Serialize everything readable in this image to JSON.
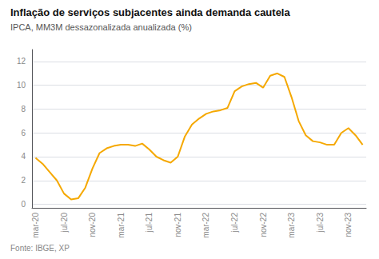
{
  "chart_data": {
    "type": "line",
    "title": "Inflação de serviços subjacentes ainda demanda cautela",
    "subtitle": "IPCA, MM3M dessazonalizada anualizada (%)",
    "footnote": "Fonte: IBGE, XP",
    "categories": [
      "mar-20",
      null,
      null,
      null,
      "jul-20",
      null,
      null,
      null,
      "nov-20",
      null,
      null,
      null,
      "mar-21",
      null,
      null,
      null,
      "jul-21",
      null,
      null,
      null,
      "nov-21",
      null,
      null,
      null,
      "mar-22",
      null,
      null,
      null,
      "jul-22",
      null,
      null,
      null,
      "nov-22",
      null,
      null,
      null,
      "mar-23",
      null,
      null,
      null,
      "jul-23",
      null,
      null,
      null,
      "nov-23",
      null,
      null
    ],
    "values": [
      3.9,
      3.4,
      2.7,
      2.0,
      0.9,
      0.4,
      0.5,
      1.4,
      3.0,
      4.3,
      4.7,
      4.9,
      5.0,
      5.0,
      4.9,
      5.1,
      4.6,
      4.0,
      3.7,
      3.5,
      4.0,
      5.7,
      6.7,
      7.2,
      7.6,
      7.8,
      7.9,
      8.1,
      9.5,
      9.9,
      10.1,
      10.2,
      9.8,
      10.8,
      11.0,
      10.7,
      9.0,
      7.0,
      5.8,
      5.3,
      5.2,
      5.0,
      5.0,
      6.0,
      6.4,
      5.8,
      5.0
    ],
    "color": "#F5A800",
    "ylim": [
      -0.3,
      13.0
    ],
    "yticks": [
      0,
      2,
      4,
      6,
      8,
      10,
      12
    ],
    "grid": true
  }
}
